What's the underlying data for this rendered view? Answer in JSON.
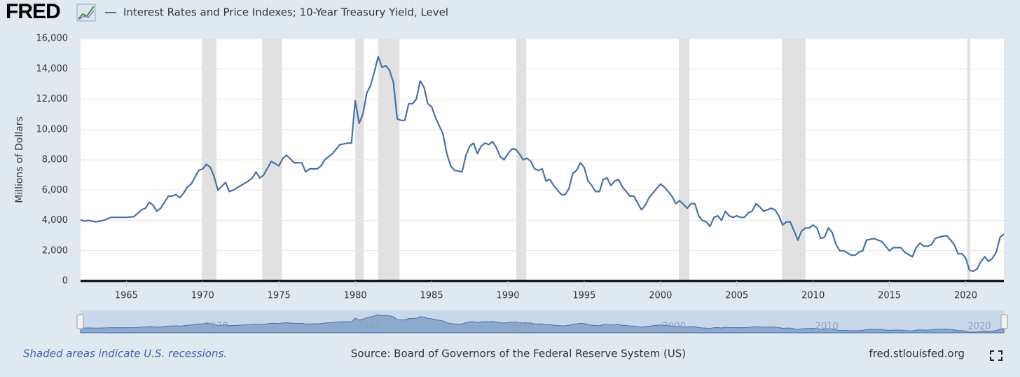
{
  "logo": "FRED",
  "chart_data": {
    "type": "line",
    "ylabel": "Millions of Dollars",
    "note": "Shaded areas indicate U.S. recessions.",
    "source": "Source: Board of Governors of the Federal Reserve System (US)",
    "site": "fred.stlouisfed.org",
    "x": [
      1962,
      1962.25,
      1962.5,
      1963,
      1963.5,
      1964,
      1964.5,
      1965,
      1965.5,
      1966,
      1966.25,
      1966.5,
      1966.75,
      1967,
      1967.25,
      1967.75,
      1968,
      1968.25,
      1968.5,
      1968.75,
      1969,
      1969.25,
      1969.75,
      1970,
      1970.25,
      1970.5,
      1970.75,
      1971,
      1971.5,
      1971.75,
      1972,
      1972.5,
      1973,
      1973.25,
      1973.5,
      1973.75,
      1974,
      1974.5,
      1975,
      1975.25,
      1975.5,
      1976,
      1976.5,
      1976.75,
      1977,
      1977.5,
      1977.75,
      1978,
      1978.5,
      1979,
      1979.5,
      1979.75,
      1980,
      1980.25,
      1980.5,
      1980.75,
      1981,
      1981.25,
      1981.5,
      1981.75,
      1982,
      1982.25,
      1982.5,
      1982.75,
      1983,
      1983.25,
      1983.5,
      1983.75,
      1984,
      1984.25,
      1984.5,
      1984.75,
      1985,
      1985.25,
      1985.75,
      1986,
      1986.25,
      1986.5,
      1987,
      1987.25,
      1987.5,
      1987.75,
      1988,
      1988.25,
      1988.5,
      1988.75,
      1989,
      1989.25,
      1989.5,
      1989.75,
      1990,
      1990.25,
      1990.5,
      1990.75,
      1991,
      1991.25,
      1991.5,
      1991.75,
      1992,
      1992.25,
      1992.5,
      1992.75,
      1993,
      1993.5,
      1993.75,
      1994,
      1994.25,
      1994.5,
      1994.75,
      1995,
      1995.25,
      1995.5,
      1995.75,
      1996,
      1996.25,
      1996.5,
      1996.75,
      1997,
      1997.25,
      1997.5,
      1998,
      1998.25,
      1998.75,
      1999,
      1999.25,
      1999.5,
      2000,
      2000.25,
      2000.75,
      2001,
      2001.25,
      2001.75,
      2002,
      2002.25,
      2002.5,
      2002.75,
      2003,
      2003.25,
      2003.5,
      2003.75,
      2004,
      2004.25,
      2004.5,
      2004.75,
      2005,
      2005.25,
      2005.5,
      2005.75,
      2006,
      2006.25,
      2006.5,
      2006.75,
      2007,
      2007.25,
      2007.5,
      2007.75,
      2008,
      2008.25,
      2008.5,
      2008.75,
      2009,
      2009.25,
      2009.5,
      2009.75,
      2010,
      2010.25,
      2010.5,
      2010.75,
      2011,
      2011.25,
      2011.5,
      2011.75,
      2012,
      2012.5,
      2012.75,
      2013,
      2013.25,
      2013.5,
      2014,
      2014.5,
      2014.75,
      2015,
      2015.25,
      2015.75,
      2016,
      2016.5,
      2016.75,
      2017,
      2017.25,
      2017.5,
      2017.75,
      2018,
      2018.25,
      2018.75,
      2019,
      2019.25,
      2019.5,
      2019.75,
      2020,
      2020.25,
      2020.5,
      2020.75,
      2021,
      2021.25,
      2021.5,
      2021.75,
      2022,
      2022.25,
      2022.5
    ],
    "series": [
      {
        "name": "Interest Rates and Price Indexes; 10-Year Treasury Yield, Level",
        "color": "#4572a7",
        "values": [
          4050,
          3950,
          4000,
          3900,
          4000,
          4200,
          4200,
          4200,
          4250,
          4700,
          4800,
          5200,
          5000,
          4600,
          4800,
          5600,
          5600,
          5700,
          5500,
          5800,
          6200,
          6400,
          7300,
          7400,
          7700,
          7500,
          6900,
          6000,
          6500,
          5900,
          6000,
          6300,
          6600,
          6800,
          7200,
          6800,
          7000,
          7900,
          7600,
          8100,
          8300,
          7800,
          7800,
          7200,
          7400,
          7400,
          7600,
          8000,
          8400,
          9000,
          9100,
          9100,
          11900,
          10400,
          11000,
          12400,
          12900,
          13800,
          14800,
          14100,
          14200,
          13900,
          13100,
          10700,
          10600,
          10600,
          11700,
          11700,
          12000,
          13200,
          12800,
          11700,
          11500,
          10800,
          9700,
          8400,
          7600,
          7300,
          7200,
          8300,
          8900,
          9100,
          8400,
          8900,
          9100,
          9000,
          9200,
          8800,
          8200,
          8000,
          8400,
          8700,
          8700,
          8400,
          8000,
          8100,
          7900,
          7400,
          7300,
          7400,
          6600,
          6700,
          6300,
          5700,
          5700,
          6100,
          7100,
          7300,
          7800,
          7500,
          6600,
          6300,
          5900,
          5900,
          6700,
          6800,
          6300,
          6600,
          6700,
          6200,
          5600,
          5600,
          4700,
          5000,
          5500,
          5800,
          6400,
          6200,
          5600,
          5100,
          5300,
          4800,
          5100,
          5100,
          4300,
          4000,
          3900,
          3600,
          4200,
          4300,
          4000,
          4600,
          4300,
          4200,
          4300,
          4200,
          4200,
          4500,
          4600,
          5100,
          4900,
          4600,
          4700,
          4800,
          4700,
          4300,
          3700,
          3900,
          3900,
          3300,
          2700,
          3300,
          3500,
          3500,
          3700,
          3500,
          2800,
          2900,
          3500,
          3200,
          2400,
          2000,
          2000,
          1700,
          1700,
          1900,
          2000,
          2700,
          2800,
          2600,
          2300,
          2000,
          2200,
          2200,
          1900,
          1600,
          2200,
          2500,
          2300,
          2300,
          2400,
          2800,
          2900,
          3000,
          2700,
          2400,
          1800,
          1800,
          1500,
          700,
          650,
          800,
          1300,
          1600,
          1300,
          1500,
          1900,
          2900,
          3100
        ]
      }
    ],
    "recessions": [
      [
        1969.95,
        1970.9
      ],
      [
        1973.9,
        1975.2
      ],
      [
        1980.0,
        1980.55
      ],
      [
        1981.5,
        1982.9
      ],
      [
        1990.55,
        1991.2
      ],
      [
        2001.2,
        2001.9
      ],
      [
        2007.95,
        2009.5
      ],
      [
        2020.1,
        2020.3
      ]
    ],
    "recession_color": "#e1e1e1",
    "xlim": [
      1962,
      2022.5
    ],
    "xticks": [
      1965,
      1970,
      1975,
      1980,
      1985,
      1990,
      1995,
      2000,
      2005,
      2010,
      2015,
      2020
    ],
    "ylim": [
      0,
      16000
    ],
    "yticks": [
      0,
      {
        "value": 2000,
        "label": "2,000"
      },
      {
        "value": 4000,
        "label": "4,000"
      },
      {
        "value": 6000,
        "label": "6,000"
      },
      {
        "value": 8000,
        "label": "8,000"
      },
      {
        "value": 10000,
        "label": "10,000"
      },
      {
        "value": 12000,
        "label": "12,000"
      },
      {
        "value": 14000,
        "label": "14,000"
      },
      {
        "value": 16000,
        "label": "16,000"
      }
    ],
    "grid": true
  }
}
